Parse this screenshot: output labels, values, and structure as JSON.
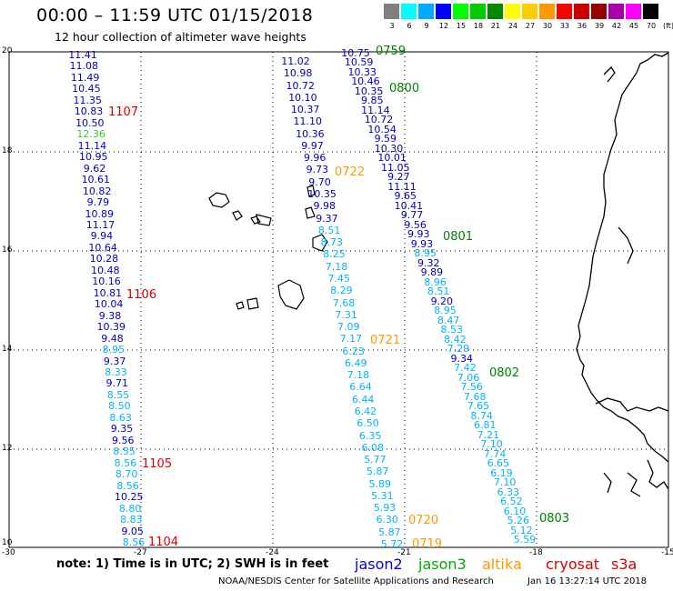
{
  "title": "00:00 – 11:59 UTC 01/15/2018",
  "subtitle": "12 hour collection of altimeter wave heights",
  "legend": {
    "labels": [
      "3",
      "6",
      "9",
      "12",
      "15",
      "18",
      "21",
      "24",
      "27",
      "30",
      "33",
      "36",
      "39",
      "42",
      "45",
      "70"
    ],
    "colors": [
      "#808080",
      "#00ffff",
      "#00aaff",
      "#0000ff",
      "#00ff00",
      "#00cc00",
      "#008800",
      "#ffff00",
      "#ffcc00",
      "#ff9900",
      "#ff0000",
      "#cc0000",
      "#990000",
      "#aa00aa",
      "#ff00ff",
      "#000000"
    ],
    "unit": "(ft)"
  },
  "axes": {
    "lat_labels": [
      "20",
      "18",
      "16",
      "14",
      "12",
      "10"
    ],
    "lon_labels": [
      "-30",
      "-27",
      "-24",
      "-21",
      "-18",
      "-15"
    ]
  },
  "colors": {
    "blue": "#0000c0",
    "lightblue": "#00b4ff",
    "green": "#30d030",
    "red": "#dd0000",
    "darkgreen": "#008000",
    "orange": "#ff9900"
  },
  "tracks": [
    {
      "name": "track-1104-1107",
      "points": [
        {
          "v": "11.41",
          "c": "blue"
        },
        {
          "v": "11.08",
          "c": "blue"
        },
        {
          "v": "11.49",
          "c": "blue"
        },
        {
          "v": "10.45",
          "c": "blue"
        },
        {
          "v": "11.35",
          "c": "blue"
        },
        {
          "v": "10.83",
          "c": "blue"
        },
        {
          "v": "10.50",
          "c": "blue"
        },
        {
          "v": "12.36",
          "c": "green"
        },
        {
          "v": "11.14",
          "c": "blue"
        },
        {
          "v": "10.95",
          "c": "blue"
        },
        {
          "v": "9.62",
          "c": "blue"
        },
        {
          "v": "10.61",
          "c": "blue"
        },
        {
          "v": "10.82",
          "c": "blue"
        },
        {
          "v": "9.79",
          "c": "blue"
        },
        {
          "v": "10.89",
          "c": "blue"
        },
        {
          "v": "11.17",
          "c": "blue"
        },
        {
          "v": "9.94",
          "c": "blue"
        },
        {
          "v": "10.64",
          "c": "blue"
        },
        {
          "v": "10.28",
          "c": "blue"
        },
        {
          "v": "10.48",
          "c": "blue"
        },
        {
          "v": "10.16",
          "c": "blue"
        },
        {
          "v": "10.81",
          "c": "blue"
        },
        {
          "v": "10.04",
          "c": "blue"
        },
        {
          "v": "9.38",
          "c": "blue"
        },
        {
          "v": "10.39",
          "c": "blue"
        },
        {
          "v": "9.48",
          "c": "blue"
        },
        {
          "v": "8.95",
          "c": "lightblue"
        },
        {
          "v": "9.37",
          "c": "blue"
        },
        {
          "v": "8.33",
          "c": "lightblue"
        },
        {
          "v": "9.71",
          "c": "blue"
        },
        {
          "v": "8.55",
          "c": "lightblue"
        },
        {
          "v": "8.50",
          "c": "lightblue"
        },
        {
          "v": "8.63",
          "c": "lightblue"
        },
        {
          "v": "9.35",
          "c": "blue"
        },
        {
          "v": "9.56",
          "c": "blue"
        },
        {
          "v": "8.55",
          "c": "lightblue"
        },
        {
          "v": "8.56",
          "c": "lightblue"
        },
        {
          "v": "8.70",
          "c": "lightblue"
        },
        {
          "v": "8.56",
          "c": "lightblue"
        },
        {
          "v": "10.25",
          "c": "blue"
        },
        {
          "v": "8.80",
          "c": "lightblue"
        },
        {
          "v": "8.83",
          "c": "lightblue"
        },
        {
          "v": "9.05",
          "c": "blue"
        },
        {
          "v": "8.56",
          "c": "lightblue"
        }
      ]
    },
    {
      "name": "track-0719-0722",
      "points": [
        {
          "v": "11.02",
          "c": "blue"
        },
        {
          "v": "10.98",
          "c": "blue"
        },
        {
          "v": "10.72",
          "c": "blue"
        },
        {
          "v": "10.10",
          "c": "blue"
        },
        {
          "v": "10.37",
          "c": "blue"
        },
        {
          "v": "11.10",
          "c": "blue"
        },
        {
          "v": "10.36",
          "c": "blue"
        },
        {
          "v": "9.97",
          "c": "blue"
        },
        {
          "v": "9.96",
          "c": "blue"
        },
        {
          "v": "9.73",
          "c": "blue"
        },
        {
          "v": "9.70",
          "c": "blue"
        },
        {
          "v": "10.35",
          "c": "blue"
        },
        {
          "v": "9.98",
          "c": "blue"
        },
        {
          "v": "9.37",
          "c": "blue"
        },
        {
          "v": "8.51",
          "c": "lightblue"
        },
        {
          "v": "8.73",
          "c": "lightblue"
        },
        {
          "v": "8.25",
          "c": "lightblue"
        },
        {
          "v": "7.18",
          "c": "lightblue"
        },
        {
          "v": "7.45",
          "c": "lightblue"
        },
        {
          "v": "8.29",
          "c": "lightblue"
        },
        {
          "v": "7.68",
          "c": "lightblue"
        },
        {
          "v": "7.31",
          "c": "lightblue"
        },
        {
          "v": "7.09",
          "c": "lightblue"
        },
        {
          "v": "7.17",
          "c": "lightblue"
        },
        {
          "v": "6.23",
          "c": "lightblue"
        },
        {
          "v": "6.49",
          "c": "lightblue"
        },
        {
          "v": "7.18",
          "c": "lightblue"
        },
        {
          "v": "6.64",
          "c": "lightblue"
        },
        {
          "v": "6.44",
          "c": "lightblue"
        },
        {
          "v": "6.42",
          "c": "lightblue"
        },
        {
          "v": "6.50",
          "c": "lightblue"
        },
        {
          "v": "6.35",
          "c": "lightblue"
        },
        {
          "v": "6.08",
          "c": "lightblue"
        },
        {
          "v": "5.77",
          "c": "lightblue"
        },
        {
          "v": "5.87",
          "c": "lightblue"
        },
        {
          "v": "5.89",
          "c": "lightblue"
        },
        {
          "v": "5.31",
          "c": "lightblue"
        },
        {
          "v": "5.93",
          "c": "lightblue"
        },
        {
          "v": "6.30",
          "c": "lightblue"
        },
        {
          "v": "5.87",
          "c": "lightblue"
        },
        {
          "v": "5.72",
          "c": "lightblue"
        }
      ]
    },
    {
      "name": "track-0759-0803",
      "points": [
        {
          "v": "10.75",
          "c": "blue"
        },
        {
          "v": "10.59",
          "c": "blue"
        },
        {
          "v": "10.33",
          "c": "blue"
        },
        {
          "v": "10.46",
          "c": "blue"
        },
        {
          "v": "10.35",
          "c": "blue"
        },
        {
          "v": "9.85",
          "c": "blue"
        },
        {
          "v": "11.14",
          "c": "blue"
        },
        {
          "v": "10.72",
          "c": "blue"
        },
        {
          "v": "10.54",
          "c": "blue"
        },
        {
          "v": "9.59",
          "c": "blue"
        },
        {
          "v": "10.30",
          "c": "blue"
        },
        {
          "v": "10.01",
          "c": "blue"
        },
        {
          "v": "11.05",
          "c": "blue"
        },
        {
          "v": "9.27",
          "c": "blue"
        },
        {
          "v": "11.11",
          "c": "blue"
        },
        {
          "v": "9.65",
          "c": "blue"
        },
        {
          "v": "10.41",
          "c": "blue"
        },
        {
          "v": "9.77",
          "c": "blue"
        },
        {
          "v": "9.56",
          "c": "blue"
        },
        {
          "v": "9.93",
          "c": "blue"
        },
        {
          "v": "9.93",
          "c": "blue"
        },
        {
          "v": "8.95",
          "c": "lightblue"
        },
        {
          "v": "9.32",
          "c": "blue"
        },
        {
          "v": "9.89",
          "c": "blue"
        },
        {
          "v": "8.96",
          "c": "lightblue"
        },
        {
          "v": "8.51",
          "c": "lightblue"
        },
        {
          "v": "9.20",
          "c": "blue"
        },
        {
          "v": "8.95",
          "c": "lightblue"
        },
        {
          "v": "8.47",
          "c": "lightblue"
        },
        {
          "v": "8.53",
          "c": "lightblue"
        },
        {
          "v": "8.42",
          "c": "lightblue"
        },
        {
          "v": "7.29",
          "c": "lightblue"
        },
        {
          "v": "9.34",
          "c": "blue"
        },
        {
          "v": "7.42",
          "c": "lightblue"
        },
        {
          "v": "7.06",
          "c": "lightblue"
        },
        {
          "v": "7.56",
          "c": "lightblue"
        },
        {
          "v": "7.68",
          "c": "lightblue"
        },
        {
          "v": "7.65",
          "c": "lightblue"
        },
        {
          "v": "8.74",
          "c": "lightblue"
        },
        {
          "v": "6.81",
          "c": "lightblue"
        },
        {
          "v": "7.21",
          "c": "lightblue"
        },
        {
          "v": "7.10",
          "c": "lightblue"
        },
        {
          "v": "7.74",
          "c": "lightblue"
        },
        {
          "v": "6.65",
          "c": "lightblue"
        },
        {
          "v": "6.19",
          "c": "lightblue"
        },
        {
          "v": "7.10",
          "c": "lightblue"
        },
        {
          "v": "6.33",
          "c": "lightblue"
        },
        {
          "v": "6.52",
          "c": "lightblue"
        },
        {
          "v": "6.10",
          "c": "lightblue"
        },
        {
          "v": "5.26",
          "c": "lightblue"
        },
        {
          "v": "5.12",
          "c": "lightblue"
        },
        {
          "v": "5.59",
          "c": "lightblue"
        }
      ]
    }
  ],
  "time_labels": [
    {
      "t": "1107",
      "c": "red"
    },
    {
      "t": "1106",
      "c": "red"
    },
    {
      "t": "1105",
      "c": "red"
    },
    {
      "t": "1104",
      "c": "red"
    },
    {
      "t": "0722",
      "c": "orange"
    },
    {
      "t": "0721",
      "c": "orange"
    },
    {
      "t": "0720",
      "c": "orange"
    },
    {
      "t": "0719",
      "c": "orange"
    },
    {
      "t": "0759",
      "c": "darkgreen"
    },
    {
      "t": "0800",
      "c": "darkgreen"
    },
    {
      "t": "0801",
      "c": "darkgreen"
    },
    {
      "t": "0802",
      "c": "darkgreen"
    },
    {
      "t": "0803",
      "c": "darkgreen"
    }
  ],
  "note": "note:  1) Time is in UTC;  2) SWH is in feet",
  "satellites": [
    {
      "name": "jason2",
      "color": "#0000dd"
    },
    {
      "name": "jason3",
      "color": "#00aa00"
    },
    {
      "name": "altika",
      "color": "#ff9900"
    },
    {
      "name": "cryosat",
      "color": "#dd0000"
    },
    {
      "name": "s3a",
      "color": "#cc0000"
    }
  ],
  "credit": "NOAA/NESDIS Center for Satellite Applications and Research",
  "stamp": "Jan 16 13:27:14 UTC 2018"
}
